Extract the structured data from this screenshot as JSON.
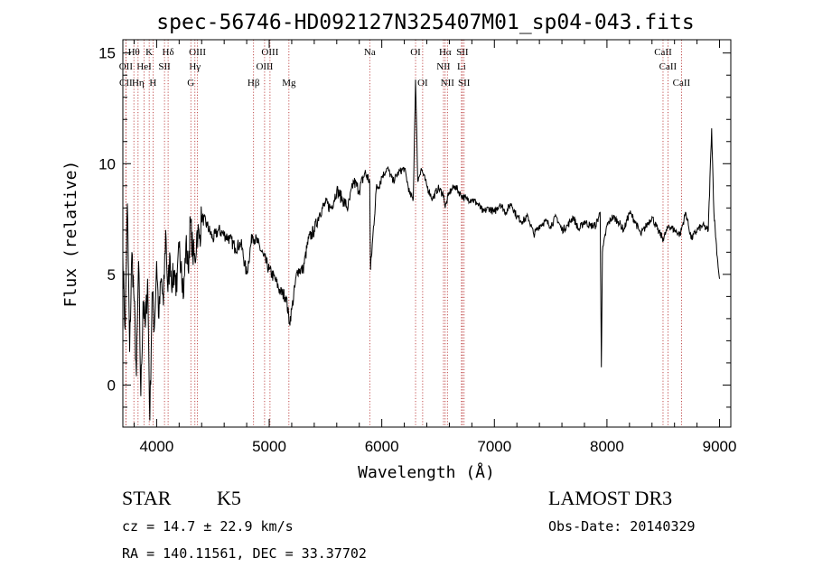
{
  "chart_data": {
    "type": "line",
    "title": "spec-56746-HD092127N325407M01_sp04-043.fits",
    "xlabel": "Wavelength (Å)",
    "ylabel": "Flux (relative)",
    "xlim": [
      3700,
      9100
    ],
    "ylim": [
      -1.9,
      15.6
    ],
    "x_ticks": [
      4000,
      5000,
      6000,
      7000,
      8000,
      9000
    ],
    "y_ticks": [
      0,
      5,
      10,
      15
    ],
    "series": [
      {
        "name": "flux",
        "x": [
          3700,
          3720,
          3740,
          3760,
          3780,
          3800,
          3820,
          3840,
          3860,
          3880,
          3900,
          3920,
          3940,
          3960,
          3980,
          4000,
          4020,
          4040,
          4060,
          4080,
          4100,
          4120,
          4140,
          4160,
          4180,
          4200,
          4220,
          4240,
          4260,
          4280,
          4300,
          4320,
          4340,
          4360,
          4380,
          4400,
          4450,
          4500,
          4550,
          4600,
          4650,
          4700,
          4750,
          4800,
          4850,
          4900,
          4950,
          5000,
          5050,
          5100,
          5150,
          5180,
          5200,
          5250,
          5300,
          5350,
          5400,
          5450,
          5500,
          5550,
          5600,
          5650,
          5700,
          5750,
          5800,
          5850,
          5893,
          5900,
          5950,
          6000,
          6050,
          6100,
          6150,
          6200,
          6250,
          6280,
          6300,
          6320,
          6350,
          6400,
          6450,
          6500,
          6550,
          6563,
          6600,
          6650,
          6700,
          6750,
          6800,
          6850,
          6900,
          6950,
          7000,
          7050,
          7100,
          7150,
          7200,
          7250,
          7300,
          7350,
          7400,
          7450,
          7500,
          7550,
          7600,
          7650,
          7700,
          7750,
          7800,
          7850,
          7900,
          7940,
          7950,
          7960,
          8000,
          8050,
          8100,
          8150,
          8200,
          8250,
          8300,
          8350,
          8400,
          8450,
          8500,
          8550,
          8600,
          8650,
          8700,
          8750,
          8800,
          8850,
          8900,
          8930,
          8950,
          8980,
          9000
        ],
        "y": [
          5.8,
          2.5,
          8.2,
          1.5,
          6.0,
          3.8,
          0.4,
          5.6,
          -0.5,
          3.8,
          2.6,
          4.8,
          -1.6,
          4.2,
          2.6,
          5.6,
          3.0,
          4.8,
          3.6,
          7.0,
          4.2,
          5.8,
          4.6,
          5.2,
          4.2,
          6.2,
          5.6,
          4.0,
          6.4,
          5.2,
          7.4,
          6.0,
          5.6,
          7.0,
          6.6,
          7.6,
          7.2,
          6.6,
          7.0,
          6.8,
          6.6,
          6.2,
          6.4,
          5.0,
          6.8,
          6.4,
          5.8,
          5.2,
          4.8,
          4.2,
          4.0,
          2.8,
          3.4,
          5.2,
          5.2,
          6.6,
          7.0,
          7.8,
          8.2,
          8.0,
          8.8,
          8.4,
          8.0,
          9.2,
          8.8,
          9.6,
          9.2,
          5.2,
          8.8,
          9.4,
          9.8,
          9.2,
          9.6,
          9.8,
          8.6,
          8.4,
          13.8,
          9.2,
          9.8,
          9.0,
          8.4,
          8.9,
          8.6,
          8.0,
          8.7,
          9.0,
          8.6,
          8.4,
          8.4,
          8.2,
          7.8,
          8.0,
          7.8,
          8.2,
          7.8,
          8.2,
          7.6,
          7.4,
          7.6,
          6.8,
          7.2,
          7.4,
          7.2,
          7.6,
          7.0,
          7.2,
          7.6,
          7.0,
          7.4,
          7.2,
          7.2,
          7.8,
          0.8,
          6.0,
          7.2,
          7.6,
          7.4,
          7.0,
          7.8,
          7.4,
          6.8,
          7.2,
          7.6,
          7.0,
          6.6,
          7.2,
          7.0,
          6.8,
          7.8,
          6.6,
          7.0,
          7.2,
          7.0,
          11.6,
          7.8,
          5.8,
          4.8
        ]
      }
    ],
    "lines_top": [
      {
        "label": "Hθ",
        "x": 3798
      },
      {
        "label": "K",
        "x": 3934
      },
      {
        "label": "Hδ",
        "x": 4102
      },
      {
        "label": "OIII",
        "x": 4363
      },
      {
        "label": "OIII",
        "x": 5007
      },
      {
        "label": "Na",
        "x": 5893
      },
      {
        "label": "OI",
        "x": 6300
      },
      {
        "label": "Hα",
        "x": 6563
      },
      {
        "label": "SII",
        "x": 6716
      },
      {
        "label": "CaII",
        "x": 8498
      }
    ],
    "lines_mid": [
      {
        "label": "OII",
        "x": 3727
      },
      {
        "label": "HeI",
        "x": 3889
      },
      {
        "label": "SII",
        "x": 4070
      },
      {
        "label": "Hγ",
        "x": 4340
      },
      {
        "label": "OIII",
        "x": 4959
      },
      {
        "label": "NII",
        "x": 6548
      },
      {
        "label": "Li",
        "x": 6708
      },
      {
        "label": "CaII",
        "x": 8542
      }
    ],
    "lines_bot": [
      {
        "label": "CII",
        "x": 3727
      },
      {
        "label": "Hη",
        "x": 3835
      },
      {
        "label": "H",
        "x": 3968
      },
      {
        "label": "G",
        "x": 4304
      },
      {
        "label": "Hβ",
        "x": 4861
      },
      {
        "label": "Mg",
        "x": 5175
      },
      {
        "label": "OI",
        "x": 6363
      },
      {
        "label": "NII",
        "x": 6583
      },
      {
        "label": "SII",
        "x": 6731
      },
      {
        "label": "CaII",
        "x": 8662
      }
    ]
  },
  "info": {
    "object_class": "STAR",
    "subclass": "K5",
    "survey": "LAMOST DR3",
    "cz": "cz = 14.7 ± 22.9 km/s",
    "obs_date": "Obs-Date: 20140329",
    "coords": "RA = 140.11561, DEC =  33.37702"
  }
}
